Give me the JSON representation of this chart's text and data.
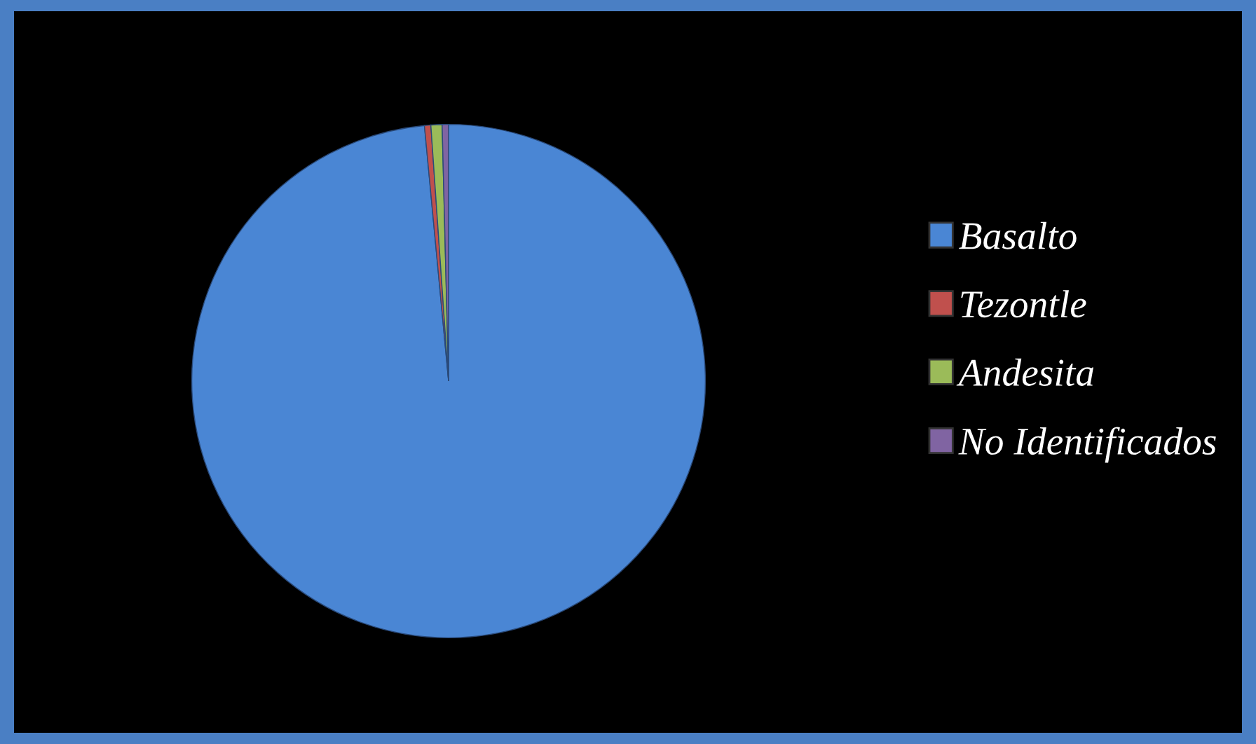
{
  "chart_data": {
    "type": "pie",
    "categories": [
      "Basalto",
      "Tezontle",
      "Andesita",
      "No Identificados"
    ],
    "values": [
      98.5,
      0.4,
      0.7,
      0.4
    ],
    "colors": [
      "#4a86d4",
      "#c0504d",
      "#9bbb59",
      "#8064a2"
    ],
    "legend": "right"
  }
}
